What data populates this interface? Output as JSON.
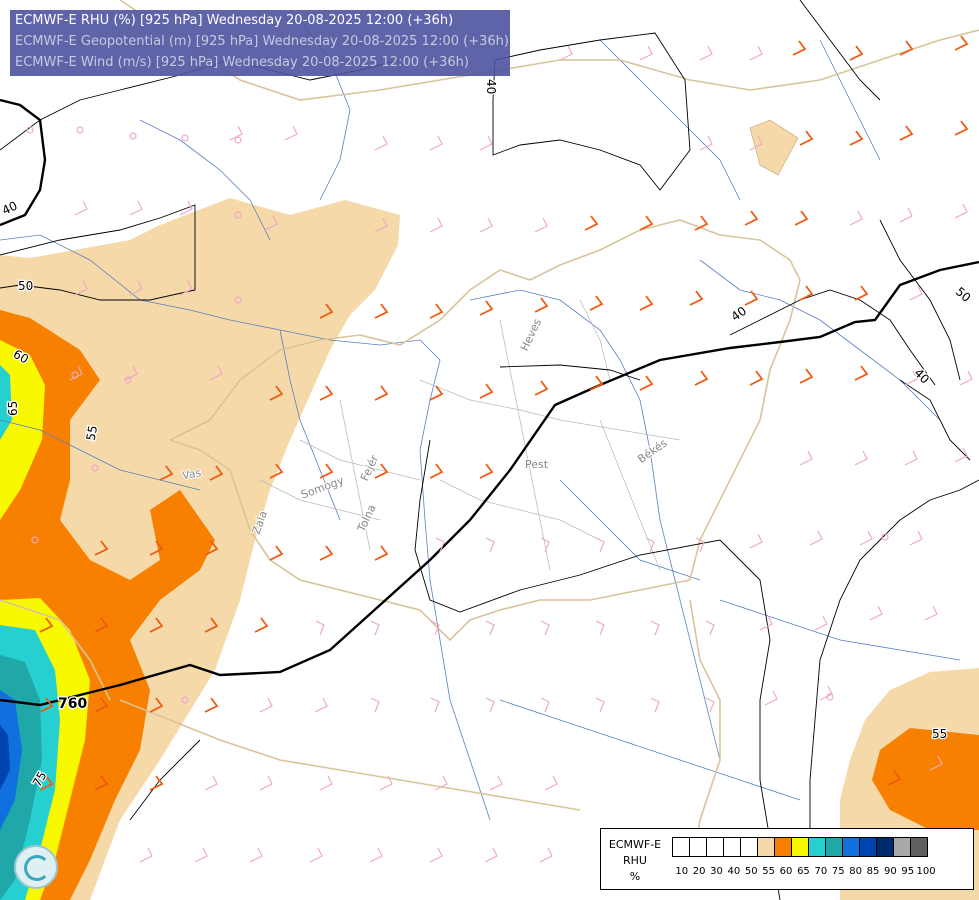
{
  "header": {
    "line1": "ECMWF-E RHU (%) [925 hPa] Wednesday 20-08-2025 12:00 (+36h)",
    "line2": "ECMWF-E Geopotential (m) [925 hPa] Wednesday 20-08-2025 12:00 (+36h)",
    "line3": "ECMWF-E Wind (m/s) [925 hPa] Wednesday 20-08-2025 12:00 (+36h)"
  },
  "map_labels": {
    "counties": [
      "Heves",
      "Pest",
      "Békés",
      "Vas",
      "Somogy",
      "Fejér",
      "Tolna",
      "Zala"
    ],
    "contour_labels": [
      "40",
      "40",
      "40",
      "40",
      "50",
      "50",
      "55",
      "55",
      "60",
      "65",
      "75",
      "760"
    ]
  },
  "legend": {
    "title_lines": [
      "ECMWF-E",
      "RHU",
      "%"
    ],
    "ticks": [
      "10",
      "20",
      "30",
      "40",
      "50",
      "55",
      "60",
      "65",
      "70",
      "75",
      "80",
      "85",
      "90",
      "95",
      "100"
    ],
    "colors": [
      "#ffffff",
      "#ffffff",
      "#ffffff",
      "#ffffff",
      "#ffffff",
      "#f5d9a8",
      "#f88000",
      "#f8f800",
      "#26d0d0",
      "#20a8a8",
      "#1070e0",
      "#0044b0",
      "#002a6e",
      "#a8a8a8",
      "#606060"
    ]
  },
  "colors": {
    "header_bg": "#4e53a0",
    "rhu_55": "#f5d9a8",
    "rhu_60": "#f88000",
    "rhu_65": "#f8f800",
    "rhu_70": "#26d0d0",
    "rhu_75": "#20a8a8",
    "rhu_80": "#1070e0",
    "rhu_85": "#0044b0",
    "wind_barb_strong": "#f05a10",
    "wind_barb_weak": "#f0a8c8",
    "rivers": "#5a7fbf",
    "borders": "#d8c49a"
  }
}
